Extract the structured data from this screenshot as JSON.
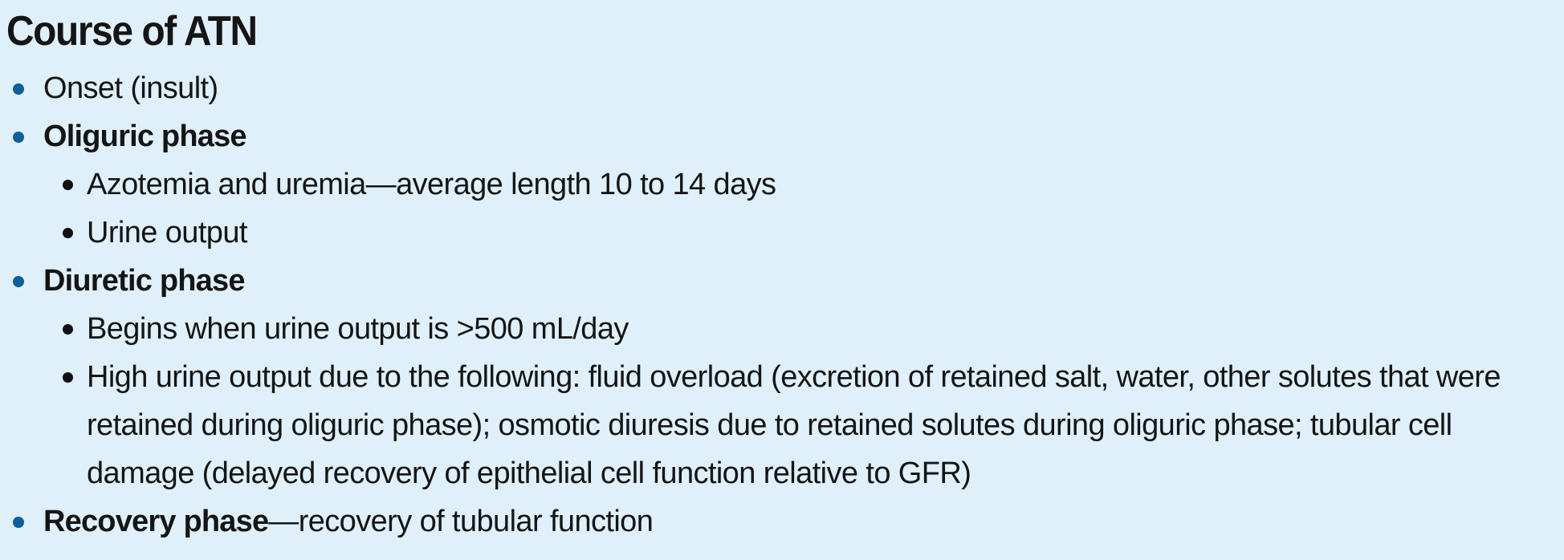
{
  "title": "Course of ATN",
  "items": [
    {
      "text": "Onset (insult)"
    },
    {
      "label": "Oliguric phase",
      "subitems": [
        "Azotemia and uremia—average length 10 to 14 days",
        "Urine output"
      ]
    },
    {
      "label": "Diuretic phase",
      "subitems": [
        "Begins when urine output is >500 mL/day",
        "High urine output due to the following: fluid overload (excretion of retained salt, water, other solutes that were retained during oliguric phase); osmotic diuresis due to retained solutes during oliguric phase; tubular cell damage (delayed recovery of epithelial cell function relative to GFR)"
      ]
    },
    {
      "label": "Recovery phase",
      "suffix": "—recovery of tubular function"
    }
  ],
  "colors": {
    "background": "#dff0fa",
    "bullet_level1": "#0f5f99",
    "text": "#151515"
  }
}
